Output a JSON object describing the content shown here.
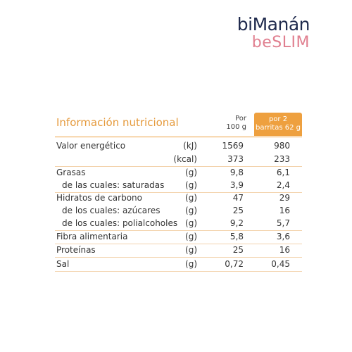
{
  "brand": {
    "name": "biManán",
    "line": "beSLIM"
  },
  "table": {
    "title": "Información nutricional",
    "headers": {
      "per_100": [
        "Por",
        "100 g"
      ],
      "per_serving": [
        "por 2",
        "barritas 62 g"
      ]
    },
    "rows": [
      {
        "label": "Valor energético",
        "unit": "(kJ)",
        "per_100": "1569",
        "per_serving": "980"
      },
      {
        "unit": "(kcal)",
        "per_100": "373",
        "per_serving": "233"
      },
      {
        "label": "Grasas",
        "unit": "(g)",
        "per_100": "9,8",
        "per_serving": "6,1"
      },
      {
        "label": "de las cuales: saturadas",
        "unit": "(g)",
        "per_100": "3,9",
        "per_serving": "2,4"
      },
      {
        "label": "Hidratos de carbono",
        "unit": "(g)",
        "per_100": "47",
        "per_serving": "29"
      },
      {
        "label": "de los cuales: azúcares",
        "unit": "(g)",
        "per_100": "25",
        "per_serving": "16"
      },
      {
        "label": "de los cuales: polialcoholes",
        "unit": "(g)",
        "per_100": "9,2",
        "per_serving": "5,7"
      },
      {
        "label": "Fibra alimentaria",
        "unit": "(g)",
        "per_100": "5,8",
        "per_serving": "3,6"
      },
      {
        "label": "Proteínas",
        "unit": "(g)",
        "per_100": "25",
        "per_serving": "16"
      },
      {
        "label": "Sal",
        "unit": "(g)",
        "per_100": "0,72",
        "per_serving": "0,45"
      }
    ]
  }
}
